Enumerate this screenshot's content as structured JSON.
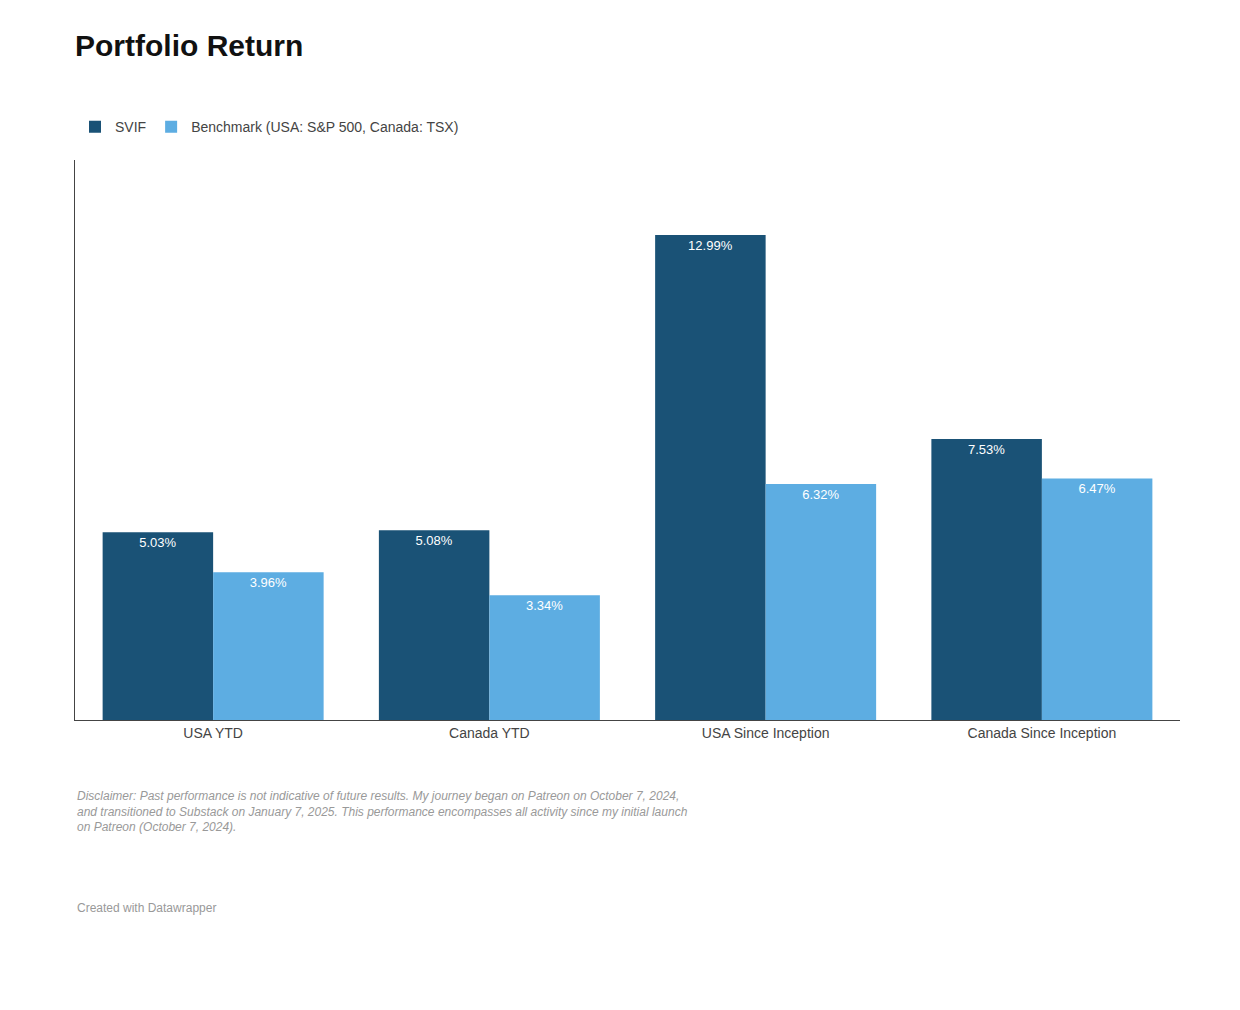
{
  "chart_data": {
    "type": "bar",
    "title": "Portfolio Return",
    "categories": [
      "USA YTD",
      "Canada YTD",
      "USA Since Inception",
      "Canada Since Inception"
    ],
    "series": [
      {
        "name": "SVIF",
        "color": "#1a5276",
        "values": [
          5.03,
          5.08,
          12.99,
          7.53
        ],
        "value_labels": [
          "5.03%",
          "5.08%",
          "12.99%",
          "7.53%"
        ]
      },
      {
        "name": "Benchmark (USA: S&P 500, Canada: TSX)",
        "color": "#5dade2",
        "values": [
          3.96,
          3.34,
          6.32,
          6.47
        ],
        "value_labels": [
          "3.96%",
          "3.34%",
          "6.32%",
          "6.47%"
        ]
      }
    ],
    "ylim": [
      0,
      15
    ],
    "data_labels": true,
    "tick_labels": "x",
    "grid": false,
    "legend": "upper left",
    "annotations": [
      "Disclaimer: Past performance is not indicative of future results. My journey began on Patreon on October 7, 2024,\nand transitioned to Substack on January 7, 2025. This performance encompasses all activity since my initial launch\non Patreon (October 7, 2024).",
      "Created with Datawrapper"
    ]
  }
}
